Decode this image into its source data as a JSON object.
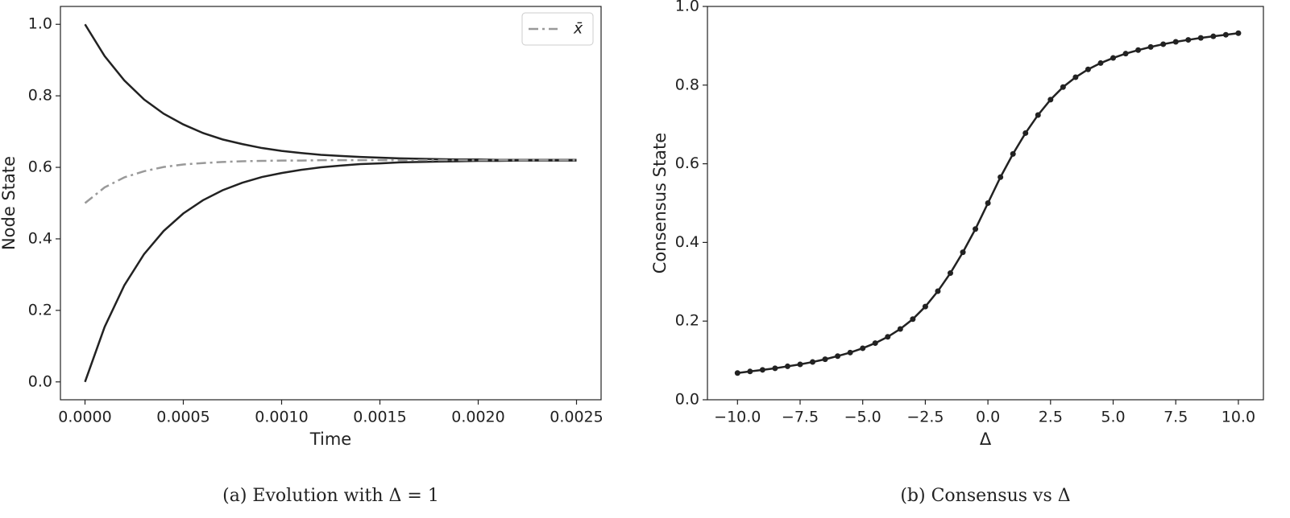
{
  "chart_data": [
    {
      "type": "line",
      "caption": "(a) Evolution with Δ = 1",
      "xlabel": "Time",
      "ylabel": "Node State",
      "x": [
        0,
        0.0001,
        0.0002,
        0.0003,
        0.0004,
        0.0005,
        0.0006,
        0.0007,
        0.0008,
        0.0009,
        0.001,
        0.0011,
        0.0012,
        0.0013,
        0.0014,
        0.0015,
        0.0016,
        0.0017,
        0.0018,
        0.0019,
        0.002,
        0.0021,
        0.0022,
        0.0023,
        0.0024,
        0.0025
      ],
      "series": [
        {
          "color": "#222222",
          "style": "solid",
          "values": [
            1.0,
            0.911,
            0.843,
            0.79,
            0.75,
            0.72,
            0.696,
            0.678,
            0.665,
            0.654,
            0.646,
            0.64,
            0.635,
            0.632,
            0.629,
            0.627,
            0.625,
            0.624,
            0.623,
            0.622,
            0.622,
            0.621,
            0.621,
            0.621,
            0.621,
            0.621
          ]
        },
        {
          "color": "#222222",
          "style": "solid",
          "values": [
            0,
            0.154,
            0.27,
            0.357,
            0.422,
            0.471,
            0.508,
            0.536,
            0.557,
            0.573,
            0.584,
            0.593,
            0.6,
            0.605,
            0.609,
            0.611,
            0.614,
            0.615,
            0.616,
            0.617,
            0.618,
            0.618,
            0.619,
            0.619,
            0.619,
            0.619
          ]
        },
        {
          "name": "x̄",
          "color": "#999999",
          "style": "dashdot",
          "values": [
            0.5,
            0.544,
            0.572,
            0.589,
            0.601,
            0.608,
            0.612,
            0.615,
            0.617,
            0.618,
            0.619,
            0.619,
            0.62,
            0.62,
            0.62,
            0.62,
            0.62,
            0.62,
            0.62,
            0.62,
            0.62,
            0.62,
            0.62,
            0.62,
            0.62,
            0.62
          ]
        }
      ],
      "xlim": [
        -0.000125,
        0.002625
      ],
      "xticks": [
        {
          "value": 0,
          "label": "0.0000"
        },
        {
          "value": 0.0005,
          "label": "0.0005"
        },
        {
          "value": 0.001,
          "label": "0.0010"
        },
        {
          "value": 0.0015,
          "label": "0.0015"
        },
        {
          "value": 0.002,
          "label": "0.0020"
        },
        {
          "value": 0.0025,
          "label": "0.0025"
        }
      ],
      "ylim": [
        -0.05,
        1.05
      ],
      "yticks": [
        {
          "value": 0,
          "label": "0.0"
        },
        {
          "value": 0.2,
          "label": "0.2"
        },
        {
          "value": 0.4,
          "label": "0.4"
        },
        {
          "value": 0.6,
          "label": "0.6"
        },
        {
          "value": 0.8,
          "label": "0.8"
        },
        {
          "value": 1,
          "label": "1.0"
        }
      ],
      "legend": "upper right"
    },
    {
      "type": "line",
      "caption": "(b) Consensus vs Δ",
      "xlabel": "Δ",
      "ylabel": "Consensus State",
      "x": [
        -10,
        -9.5,
        -9,
        -8.5,
        -8,
        -7.5,
        -7,
        -6.5,
        -6,
        -5.5,
        -5,
        -4.5,
        -4,
        -3.5,
        -3,
        -2.5,
        -2,
        -1.5,
        -1,
        -0.5,
        0,
        0.5,
        1,
        1.5,
        2,
        2.5,
        3,
        3.5,
        4,
        4.5,
        5,
        5.5,
        6,
        6.5,
        7,
        7.5,
        8,
        8.5,
        9,
        9.5,
        10
      ],
      "series": [
        {
          "color": "#222222",
          "style": "solid",
          "markers": true,
          "values": [
            0.068,
            0.072,
            0.076,
            0.08,
            0.085,
            0.09,
            0.096,
            0.103,
            0.111,
            0.12,
            0.131,
            0.144,
            0.16,
            0.18,
            0.205,
            0.237,
            0.276,
            0.322,
            0.375,
            0.434,
            0.5,
            0.566,
            0.625,
            0.678,
            0.724,
            0.763,
            0.795,
            0.82,
            0.84,
            0.856,
            0.869,
            0.88,
            0.889,
            0.897,
            0.904,
            0.91,
            0.915,
            0.92,
            0.924,
            0.928,
            0.932
          ]
        }
      ],
      "xlim": [
        -11.2,
        11.0
      ],
      "xticks": [
        {
          "value": -10,
          "label": "−10.0"
        },
        {
          "value": -7.5,
          "label": "−7.5"
        },
        {
          "value": -5,
          "label": "−5.0"
        },
        {
          "value": -2.5,
          "label": "−2.5"
        },
        {
          "value": 0,
          "label": "0.0"
        },
        {
          "value": 2.5,
          "label": "2.5"
        },
        {
          "value": 5,
          "label": "5.0"
        },
        {
          "value": 7.5,
          "label": "7.5"
        },
        {
          "value": 10,
          "label": "10.0"
        }
      ],
      "ylim": [
        0,
        1
      ],
      "yticks": [
        {
          "value": 0,
          "label": "0.0"
        },
        {
          "value": 0.2,
          "label": "0.2"
        },
        {
          "value": 0.4,
          "label": "0.4"
        },
        {
          "value": 0.6,
          "label": "0.6"
        },
        {
          "value": 0.8,
          "label": "0.8"
        },
        {
          "value": 1,
          "label": "1.0"
        }
      ]
    }
  ]
}
